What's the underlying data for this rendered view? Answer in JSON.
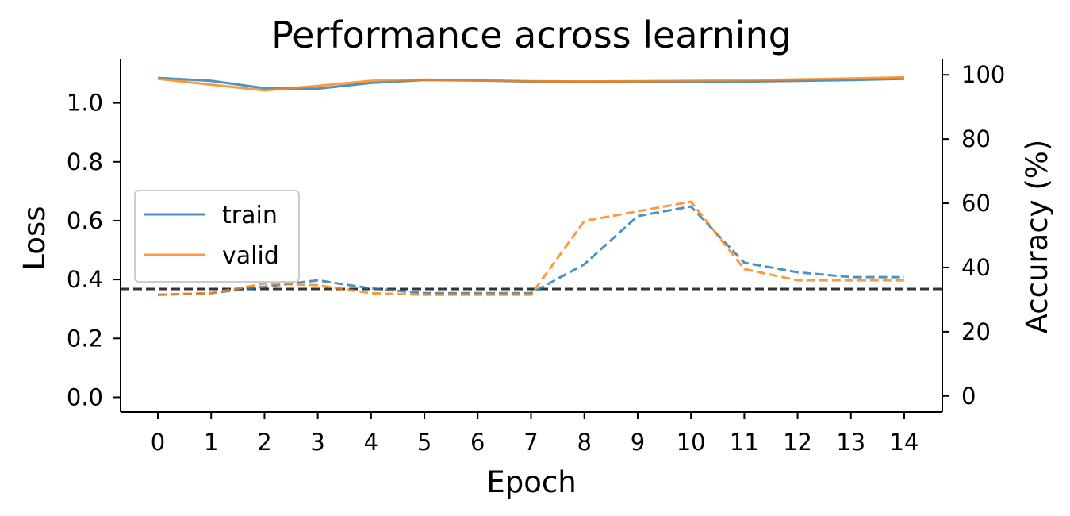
{
  "chart_data": {
    "type": "line",
    "title": "Performance across learning",
    "xlabel": "Epoch",
    "ylabel": "Loss",
    "y2label": "Accuracy (%)",
    "x": [
      0,
      1,
      2,
      3,
      4,
      5,
      6,
      7,
      8,
      9,
      10,
      11,
      12,
      13,
      14
    ],
    "xticks": [
      "0",
      "1",
      "2",
      "3",
      "4",
      "5",
      "6",
      "7",
      "8",
      "9",
      "10",
      "11",
      "12",
      "13",
      "14"
    ],
    "ylim": [
      -0.05,
      1.15
    ],
    "yticks": [
      "0.0",
      "0.2",
      "0.4",
      "0.6",
      "0.8",
      "1.0"
    ],
    "y2lim": [
      -5,
      105
    ],
    "y2ticks": [
      "0",
      "20",
      "40",
      "60",
      "80",
      "100"
    ],
    "legend_placement": "center-left",
    "grid": false,
    "loss_series": [
      {
        "name": "train",
        "color": "#1f77b4",
        "style": "solid",
        "values": [
          1.085,
          1.075,
          1.05,
          1.048,
          1.068,
          1.078,
          1.076,
          1.073,
          1.072,
          1.072,
          1.072,
          1.073,
          1.075,
          1.078,
          1.082
        ]
      },
      {
        "name": "valid",
        "color": "#ff7f0e",
        "style": "solid",
        "values": [
          1.082,
          1.062,
          1.042,
          1.058,
          1.075,
          1.079,
          1.077,
          1.074,
          1.073,
          1.074,
          1.075,
          1.077,
          1.08,
          1.083,
          1.087
        ]
      }
    ],
    "accuracy_series": [
      {
        "name": "train",
        "color": "#1f77b4",
        "style": "dashed",
        "values": [
          31.5,
          32.0,
          34.0,
          36.0,
          33.5,
          32.0,
          32.0,
          32.0,
          41.0,
          56.0,
          59.0,
          41.5,
          38.5,
          37.0,
          37.0
        ]
      },
      {
        "name": "valid",
        "color": "#ff7f0e",
        "style": "dashed",
        "values": [
          31.5,
          32.0,
          35.0,
          34.5,
          32.0,
          31.5,
          31.5,
          31.5,
          54.5,
          57.5,
          60.5,
          39.5,
          36.0,
          36.0,
          36.0
        ]
      }
    ],
    "chance_line": {
      "axis": "accuracy",
      "value": 33.3,
      "color": "#333333",
      "style": "dashed"
    },
    "legend": [
      "train",
      "valid"
    ]
  }
}
